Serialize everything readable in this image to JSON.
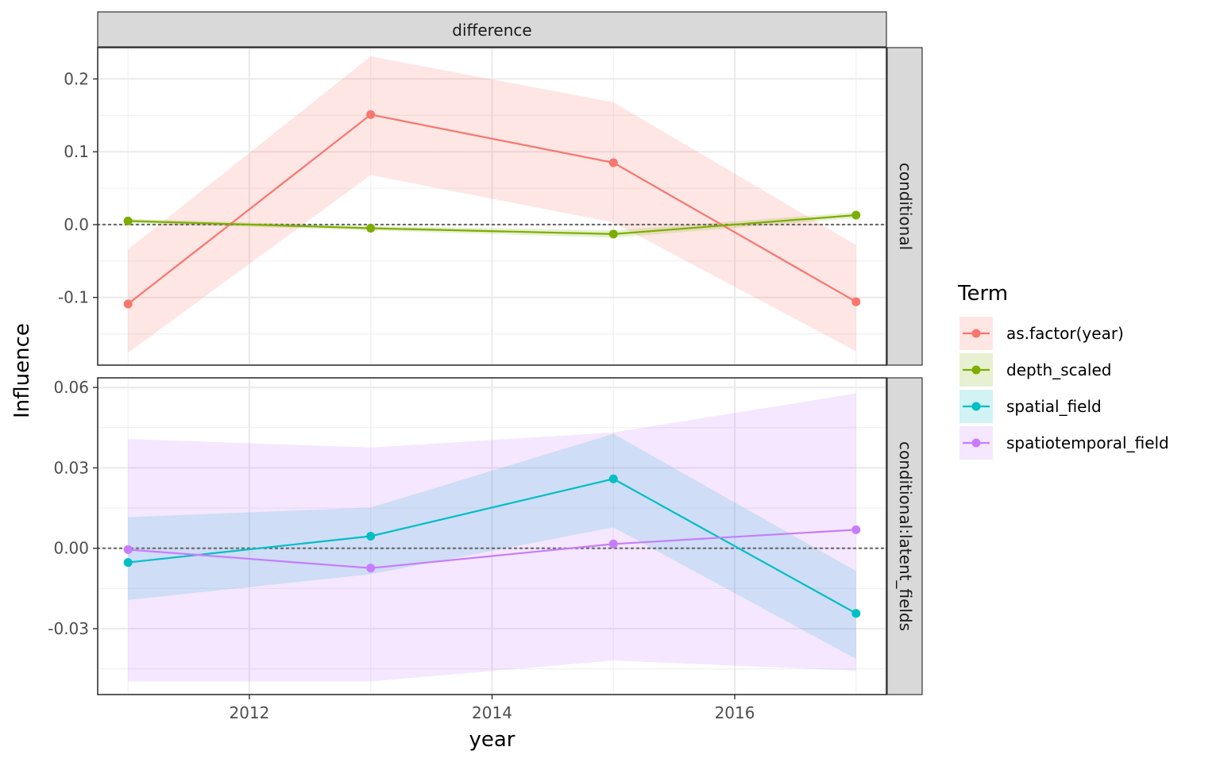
{
  "chart_data": {
    "type": "line",
    "xlabel": "year",
    "ylabel": "Influence",
    "column_strip": "difference",
    "xlim": [
      2010.75,
      2017.25
    ],
    "x_ticks": [
      2012,
      2014,
      2016
    ],
    "x_tick_labels": [
      "2012",
      "2014",
      "2016"
    ],
    "zero_line": true,
    "grid": true,
    "legend": {
      "title": "Term",
      "position": "right",
      "items": [
        "as.factor(year)",
        "depth_scaled",
        "spatial_field",
        "spatiotemporal_field"
      ]
    },
    "colors": {
      "as.factor(year)": "#F8766D",
      "depth_scaled": "#7CAE00",
      "spatial_field": "#00BFC4",
      "spatiotemporal_field": "#C77CFF"
    },
    "panels": [
      {
        "strip": "conditional",
        "ylim": [
          -0.193,
          0.243
        ],
        "y_ticks": [
          -0.1,
          0.0,
          0.1,
          0.2
        ],
        "y_tick_labels": [
          "-0.1",
          "0.0",
          "0.1",
          "0.2"
        ],
        "series": [
          {
            "name": "as.factor(year)",
            "x": [
              2011,
              2013,
              2015,
              2017
            ],
            "y": [
              -0.109,
              0.151,
              0.085,
              -0.106
            ],
            "lower": [
              -0.176,
              0.068,
              0.003,
              -0.174
            ],
            "upper": [
              -0.034,
              0.231,
              0.168,
              -0.028
            ]
          },
          {
            "name": "depth_scaled",
            "x": [
              2011,
              2013,
              2015,
              2017
            ],
            "y": [
              0.005,
              -0.005,
              -0.013,
              0.013
            ],
            "lower": [
              0.002,
              -0.008,
              -0.018,
              0.009
            ],
            "upper": [
              0.008,
              -0.002,
              -0.008,
              0.017
            ]
          }
        ]
      },
      {
        "strip": "conditional:latent_fields",
        "ylim": [
          -0.0546,
          0.0636
        ],
        "y_ticks": [
          -0.03,
          0.0,
          0.03,
          0.06
        ],
        "y_tick_labels": [
          "-0.03",
          "0.00",
          "0.03",
          "0.06"
        ],
        "series": [
          {
            "name": "spatial_field",
            "x": [
              2011,
              2013,
              2015,
              2017
            ],
            "y": [
              -0.0053,
              0.0045,
              0.0259,
              -0.0243
            ],
            "lower": [
              -0.0193,
              -0.0097,
              0.0078,
              -0.0413
            ],
            "upper": [
              0.0116,
              0.0152,
              0.0427,
              -0.0085
            ]
          },
          {
            "name": "spatiotemporal_field",
            "x": [
              2011,
              2013,
              2015,
              2017
            ],
            "y": [
              -0.0005,
              -0.0074,
              0.0016,
              0.0069
            ],
            "lower": [
              -0.0497,
              -0.0497,
              -0.0419,
              -0.0457
            ],
            "upper": [
              0.0408,
              0.0376,
              0.0432,
              0.0578
            ]
          }
        ]
      }
    ]
  }
}
